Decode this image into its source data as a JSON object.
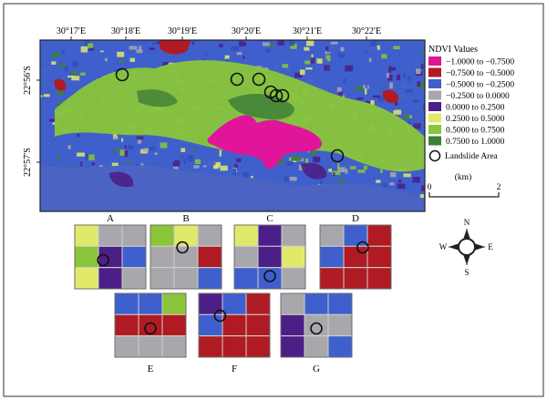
{
  "map": {
    "x_ticks": [
      "30°17′E",
      "30°18′E",
      "30°19′E",
      "30°20′E",
      "30°21′E",
      "30°22′E"
    ],
    "y_ticks": [
      "22°56′S",
      "22°57′S"
    ]
  },
  "legend": {
    "title": "NDVI Values",
    "items": [
      {
        "label": "−1.0000 to −0.7500",
        "color": "#e0159a"
      },
      {
        "label": "−0.7500 to −0.5000",
        "color": "#b01a22"
      },
      {
        "label": "−0.5000 to −0.2500",
        "color": "#3f5fcc"
      },
      {
        "label": "−0.2500 to 0.0000",
        "color": "#a8a8ac"
      },
      {
        "label": "0.0000 to 0.2500",
        "color": "#4b1f86"
      },
      {
        "label": "0.2500 to 0.5000",
        "color": "#e1e96a"
      },
      {
        "label": "0.5000 to 0.7500",
        "color": "#8ac53a"
      },
      {
        "label": "0.7500 to 1.0000",
        "color": "#3f7f37"
      }
    ],
    "landslide_label": "Landslide Area"
  },
  "scalebar": {
    "unit": "(km)",
    "start": "0",
    "end": "2"
  },
  "compass": {
    "n": "N",
    "s": "S",
    "e": "E",
    "w": "W"
  },
  "panels": [
    {
      "label": "A",
      "grid": [
        [
          "yellow",
          "gray",
          "gray"
        ],
        [
          "green",
          "purple",
          "blue"
        ],
        [
          "yellow",
          "purple",
          "gray"
        ]
      ],
      "circle": [
        0.4,
        0.55
      ]
    },
    {
      "label": "B",
      "grid": [
        [
          "green",
          "yellow",
          "gray"
        ],
        [
          "gray",
          "gray",
          "red"
        ],
        [
          "gray",
          "gray",
          "blue"
        ]
      ],
      "circle": [
        0.45,
        0.35
      ]
    },
    {
      "label": "C",
      "grid": [
        [
          "yellow",
          "purple",
          "gray"
        ],
        [
          "gray",
          "purple",
          "yellow"
        ],
        [
          "blue",
          "blue",
          "gray"
        ]
      ],
      "circle": [
        0.5,
        0.8
      ]
    },
    {
      "label": "D",
      "grid": [
        [
          "gray",
          "blue",
          "red"
        ],
        [
          "blue",
          "red",
          "red"
        ],
        [
          "red",
          "red",
          "red"
        ]
      ],
      "circle": [
        0.6,
        0.35
      ]
    },
    {
      "label": "E",
      "grid": [
        [
          "blue",
          "blue",
          "green"
        ],
        [
          "red",
          "red",
          "red"
        ],
        [
          "gray",
          "gray",
          "gray"
        ]
      ],
      "circle": [
        0.5,
        0.55
      ]
    },
    {
      "label": "F",
      "grid": [
        [
          "purple",
          "blue",
          "red"
        ],
        [
          "blue",
          "red",
          "red"
        ],
        [
          "red",
          "red",
          "red"
        ]
      ],
      "circle": [
        0.3,
        0.35
      ]
    },
    {
      "label": "G",
      "grid": [
        [
          "gray",
          "blue",
          "blue"
        ],
        [
          "purple",
          "gray",
          "gray"
        ],
        [
          "purple",
          "gray",
          "blue"
        ]
      ],
      "circle": [
        0.5,
        0.55
      ]
    }
  ],
  "landslides": [
    {
      "id": 1
    },
    {
      "id": 2
    },
    {
      "id": 3
    },
    {
      "id": 4
    },
    {
      "id": 5
    },
    {
      "id": 6
    },
    {
      "id": 7
    }
  ]
}
